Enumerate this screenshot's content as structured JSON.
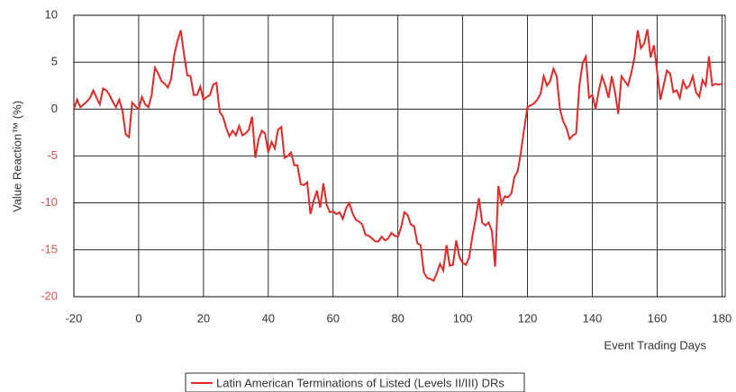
{
  "chart_data": {
    "type": "line",
    "y_label": "Value Reaction™ (%)",
    "x_label": "Event Trading Days",
    "x": [
      -20,
      -19,
      -18,
      -17,
      -16,
      -15,
      -14,
      -13,
      -12,
      -11,
      -10,
      -9,
      -8,
      -7,
      -6,
      -5,
      -4,
      -3,
      -2,
      -1,
      0,
      1,
      2,
      3,
      4,
      5,
      6,
      7,
      8,
      9,
      10,
      11,
      12,
      13,
      14,
      15,
      16,
      17,
      18,
      19,
      20,
      21,
      22,
      23,
      24,
      25,
      26,
      27,
      28,
      29,
      30,
      31,
      32,
      33,
      34,
      35,
      36,
      37,
      38,
      39,
      40,
      41,
      42,
      43,
      44,
      45,
      46,
      47,
      48,
      49,
      50,
      51,
      52,
      53,
      54,
      55,
      56,
      57,
      58,
      59,
      60,
      61,
      62,
      63,
      64,
      65,
      66,
      67,
      68,
      69,
      70,
      71,
      72,
      73,
      74,
      75,
      76,
      77,
      78,
      79,
      80,
      81,
      82,
      83,
      84,
      85,
      86,
      87,
      88,
      89,
      90,
      91,
      92,
      93,
      94,
      95,
      96,
      97,
      98,
      99,
      100,
      101,
      102,
      103,
      104,
      105,
      106,
      107,
      108,
      109,
      110,
      111,
      112,
      113,
      114,
      115,
      116,
      117,
      118,
      119,
      120,
      121,
      122,
      123,
      124,
      125,
      126,
      127,
      128,
      129,
      130,
      131,
      132,
      133,
      134,
      135,
      136,
      137,
      138,
      139,
      140,
      141,
      142,
      143,
      144,
      145,
      146,
      147,
      148,
      149,
      150,
      151,
      152,
      153,
      154,
      155,
      156,
      157,
      158,
      159,
      160,
      161,
      162,
      163,
      164,
      165,
      166,
      167,
      168,
      169,
      170,
      171,
      172,
      173,
      174,
      175,
      176,
      177,
      178,
      179,
      180
    ],
    "series": [
      {
        "name": "Latin American Terminations of Listed (Levels II/III) DRs",
        "color": "#e02a2a",
        "values": [
          0,
          1,
          0.2,
          0.5,
          0.8,
          1.2,
          2,
          1.2,
          0.5,
          2.2,
          2,
          1.5,
          0.8,
          0.2,
          1,
          -0.2,
          -2.7,
          -3,
          0.7,
          0.3,
          0,
          1.3,
          0.5,
          0.2,
          1.5,
          4.4,
          3.8,
          3,
          2.7,
          2.3,
          3.2,
          5.8,
          7.3,
          8.4,
          5.8,
          3.6,
          3.5,
          1.5,
          1.5,
          2.4,
          1,
          1.3,
          1.5,
          2.6,
          2.8,
          -0.3,
          -0.8,
          -2,
          -2.9,
          -2.3,
          -2.8,
          -1.8,
          -2.8,
          -2.6,
          -2.2,
          -0.8,
          -5.2,
          -3.2,
          -2.3,
          -2.6,
          -4.6,
          -3.5,
          -4.2,
          -2.2,
          -1.9,
          -5.2,
          -5,
          -4.6,
          -6,
          -6,
          -8,
          -8.1,
          -7.8,
          -11.2,
          -9.8,
          -8.7,
          -10.5,
          -7.9,
          -10.2,
          -11,
          -10.9,
          -11.2,
          -11,
          -11.7,
          -10.6,
          -10,
          -11.1,
          -11.8,
          -12,
          -12.3,
          -13.4,
          -13.5,
          -13.8,
          -14.1,
          -14.1,
          -13.6,
          -14,
          -13.8,
          -13.2,
          -13.5,
          -13.6,
          -12.6,
          -11,
          -11.3,
          -12.3,
          -12.5,
          -14.3,
          -14.5,
          -17.4,
          -18,
          -18.1,
          -18.3,
          -17.5,
          -16.5,
          -17.2,
          -14.5,
          -16.7,
          -16.6,
          -14,
          -15.8,
          -16.4,
          -16.6,
          -15.8,
          -13.5,
          -11.7,
          -9.5,
          -12.1,
          -12.4,
          -12.1,
          -13,
          -16.8,
          -8.2,
          -10.1,
          -9.3,
          -9.4,
          -9,
          -7.2,
          -6.6,
          -4.5,
          -2,
          0.2,
          0.4,
          0.6,
          1,
          1.6,
          3.5,
          2.5,
          3,
          4.3,
          3.5,
          0,
          -1.3,
          -2,
          -3.2,
          -2.8,
          -2.6,
          2.5,
          4.9,
          5.6,
          1.2,
          1.5,
          0,
          2,
          3.5,
          2.5,
          1.2,
          3.5,
          1.8,
          -0.5,
          3.5,
          3,
          2.5,
          3.8,
          5.5,
          8.4,
          6.5,
          7,
          8.5,
          5.5,
          6.8,
          4,
          1,
          2.5,
          4.1,
          3.8,
          1.8,
          2,
          1.2,
          3,
          2.2,
          2.5,
          3.5,
          1.8,
          1.3,
          3.1,
          2.5,
          5.6,
          2.5,
          2.7,
          2.6,
          2.7
        ]
      }
    ],
    "xlim": [
      -20,
      181
    ],
    "ylim": [
      -20,
      10
    ],
    "xticks": [
      -20,
      0,
      20,
      40,
      60,
      80,
      100,
      120,
      140,
      160,
      180
    ],
    "yticks": [
      -20,
      -15,
      -10,
      -5,
      0,
      5,
      10
    ],
    "grid": true,
    "legend": "bottom"
  }
}
